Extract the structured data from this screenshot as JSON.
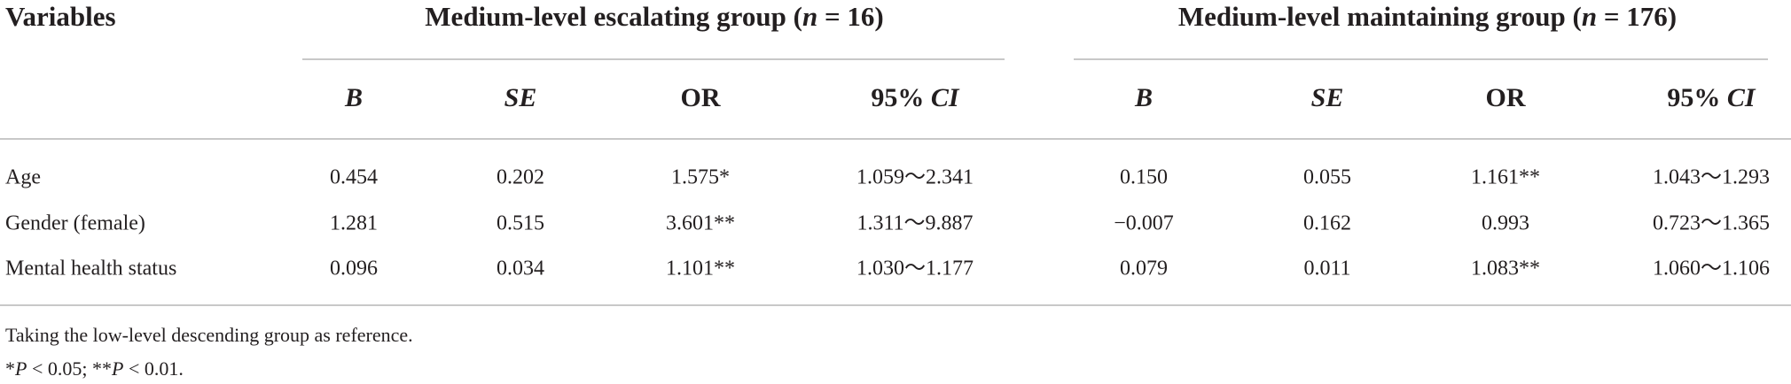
{
  "table": {
    "corner": "Variables",
    "groups": [
      {
        "title_before": "Medium-level escalating group (",
        "title_var": "n",
        "title_after": " = 16)"
      },
      {
        "title_before": "Medium-level maintaining group (",
        "title_var": "n",
        "title_after": " = 176)"
      }
    ],
    "columns": [
      {
        "main": "B",
        "italic": true
      },
      {
        "main": "SE",
        "italic": true
      },
      {
        "main": "OR",
        "italic": false
      },
      {
        "pre": "95% ",
        "main": "CI",
        "italic": true
      },
      {
        "main": "B",
        "italic": true
      },
      {
        "main": "SE",
        "italic": true
      },
      {
        "main": "OR",
        "italic": false
      },
      {
        "pre": "95% ",
        "main": "CI",
        "italic": true
      }
    ],
    "rows": [
      {
        "label": "Age",
        "cells": [
          "0.454",
          "0.202",
          "1.575*",
          "1.059～2.341",
          "0.150",
          "0.055",
          "1.161**",
          "1.043～1.293"
        ]
      },
      {
        "label": "Gender (female)",
        "cells": [
          "1.281",
          "0.515",
          "3.601**",
          "1.311～9.887",
          "−0.007",
          "0.162",
          "0.993",
          "0.723～1.365"
        ]
      },
      {
        "label": "Mental health status",
        "cells": [
          "0.096",
          "0.034",
          "1.101**",
          "1.030～1.177",
          "0.079",
          "0.011",
          "1.083**",
          "1.060～1.106"
        ]
      }
    ],
    "footnotes": [
      [
        "Taking the low-level descending group as reference."
      ],
      [
        "*",
        "P",
        " < 0.05; **",
        "P",
        " < 0.01."
      ]
    ]
  }
}
